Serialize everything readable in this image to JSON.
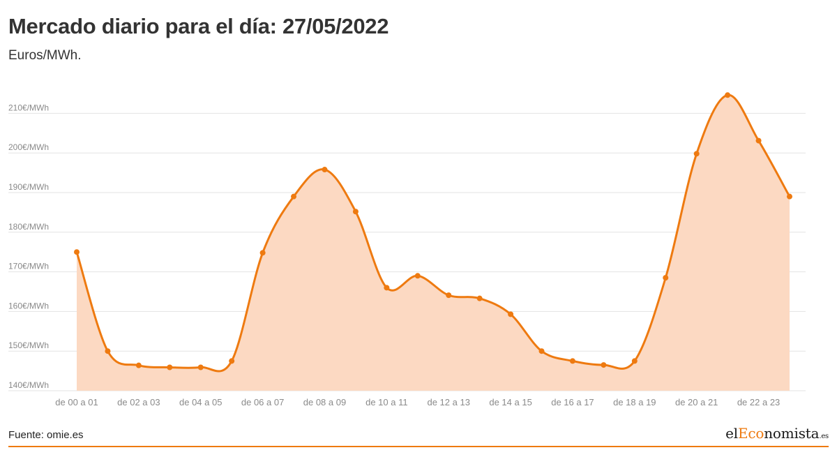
{
  "header": {
    "title": "Mercado diario para el día: 27/05/2022",
    "subtitle": "Euros/MWh."
  },
  "footer": {
    "source": "Fuente: omie.es",
    "logo": {
      "prefix": "el",
      "accent": "Eco",
      "rest": "nomista",
      "tld": ".es"
    }
  },
  "colors": {
    "line": "#ee7a10",
    "area": "#fcd9c2",
    "grid": "#e3e3e3",
    "tick_text": "#8a8a8a"
  },
  "chart_data": {
    "type": "area",
    "title": "Mercado diario para el día: 27/05/2022",
    "ylabel": "Euros/MWh.",
    "ylim": [
      140,
      210
    ],
    "yticks": [
      140,
      150,
      160,
      170,
      180,
      190,
      200,
      210
    ],
    "ytick_labels": [
      "140€/MWh",
      "150€/MWh",
      "160€/MWh",
      "170€/MWh",
      "180€/MWh",
      "190€/MWh",
      "200€/MWh",
      "210€/MWh"
    ],
    "x_tick_labels": [
      "de 00 a 01",
      "de 02 a 03",
      "de 04 a 05",
      "de 06 a 07",
      "de 08 a 09",
      "de 10 a 11",
      "de 12 a 13",
      "de 14 a 15",
      "de 16 a 17",
      "de 18 a 19",
      "de 20 a 21",
      "de 22 a 23"
    ],
    "x_tick_every": 2,
    "grid": true,
    "legend": false,
    "values": [
      175.0,
      150.0,
      146.4,
      145.9,
      145.9,
      147.5,
      174.8,
      189.0,
      195.8,
      185.2,
      166.0,
      169.0,
      164.1,
      163.3,
      159.3,
      150.0,
      147.5,
      146.5,
      147.5,
      168.5,
      199.8,
      214.6,
      203.1,
      189.0
    ]
  }
}
